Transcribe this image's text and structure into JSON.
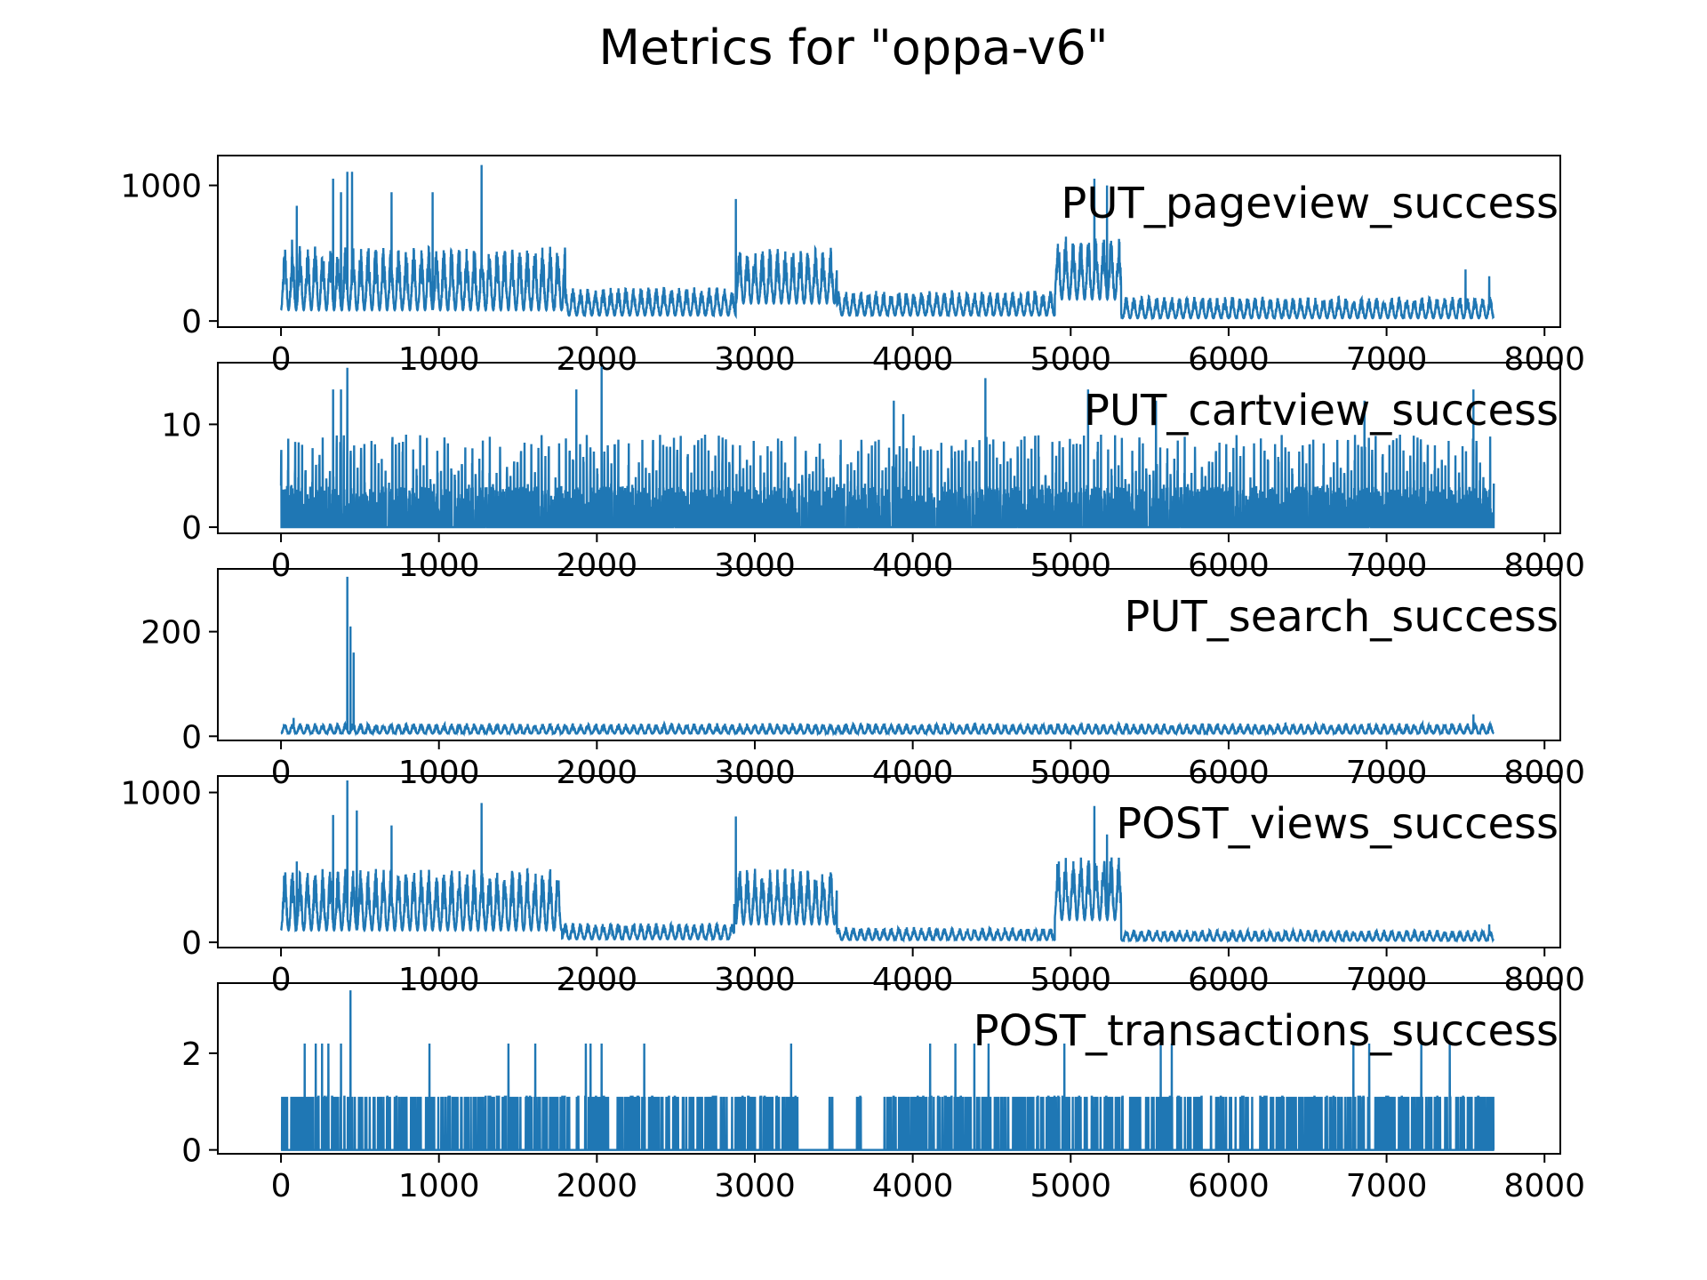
{
  "figure": {
    "title": "Metrics for \"oppa-v6\"",
    "line_color": "#1f77b4"
  },
  "chart_data": [
    {
      "type": "line",
      "label": "PUT_pageview_success",
      "xlim": [
        -400,
        8100
      ],
      "ylim": [
        -45,
        1220
      ],
      "xticks": [
        0,
        1000,
        2000,
        3000,
        4000,
        5000,
        6000,
        7000,
        8000
      ],
      "yticks": [
        0,
        1000
      ],
      "n_points": 7680,
      "segments": [
        {
          "x0": 0,
          "x1": 1800,
          "base": 80,
          "amp": 380,
          "period": 48
        },
        {
          "x0": 1800,
          "x1": 2880,
          "base": 40,
          "amp": 170,
          "period": 48
        },
        {
          "x0": 2880,
          "x1": 3520,
          "base": 130,
          "amp": 330,
          "period": 48
        },
        {
          "x0": 3520,
          "x1": 4900,
          "base": 40,
          "amp": 150,
          "period": 48
        },
        {
          "x0": 4900,
          "x1": 5320,
          "base": 160,
          "amp": 380,
          "period": 48
        },
        {
          "x0": 5320,
          "x1": 7680,
          "base": 20,
          "amp": 130,
          "period": 48
        }
      ],
      "peaks": [
        [
          20,
          420
        ],
        [
          70,
          600
        ],
        [
          100,
          850
        ],
        [
          330,
          1050
        ],
        [
          380,
          950
        ],
        [
          420,
          1100
        ],
        [
          450,
          1100
        ],
        [
          700,
          950
        ],
        [
          960,
          950
        ],
        [
          1270,
          1150
        ],
        [
          2880,
          900
        ],
        [
          5150,
          1050
        ],
        [
          5230,
          1000
        ],
        [
          7500,
          380
        ],
        [
          7650,
          330
        ]
      ]
    },
    {
      "type": "line",
      "label": "PUT_cartview_success",
      "xlim": [
        -400,
        8100
      ],
      "ylim": [
        -0.6,
        16
      ],
      "xticks": [
        0,
        1000,
        2000,
        3000,
        4000,
        5000,
        6000,
        7000,
        8000
      ],
      "yticks": [
        0,
        10
      ],
      "n_points": 7680,
      "spike_spacing": 22,
      "segments": [
        {
          "x0": 0,
          "x1": 7680,
          "base": 0,
          "amp": 6,
          "period": 48
        }
      ],
      "peaks": [
        [
          330,
          13.4
        ],
        [
          380,
          13.4
        ],
        [
          420,
          15.5
        ],
        [
          1870,
          13.4
        ],
        [
          2030,
          15.6
        ],
        [
          3880,
          12.3
        ],
        [
          3940,
          11
        ],
        [
          4460,
          14.5
        ],
        [
          5110,
          13.4
        ],
        [
          5540,
          12.3
        ],
        [
          6860,
          12.3
        ],
        [
          7550,
          13.4
        ]
      ]
    },
    {
      "type": "line",
      "label": "PUT_search_success",
      "xlim": [
        -400,
        8100
      ],
      "ylim": [
        -8,
        320
      ],
      "xticks": [
        0,
        1000,
        2000,
        3000,
        4000,
        5000,
        6000,
        7000,
        8000
      ],
      "yticks": [
        0,
        200
      ],
      "n_points": 7680,
      "segments": [
        {
          "x0": 0,
          "x1": 7680,
          "base": 5,
          "amp": 16,
          "period": 48
        }
      ],
      "peaks": [
        [
          420,
          305
        ],
        [
          440,
          210
        ],
        [
          460,
          160
        ],
        [
          80,
          35
        ],
        [
          7550,
          42
        ]
      ]
    },
    {
      "type": "line",
      "label": "POST_views_success",
      "xlim": [
        -400,
        8100
      ],
      "ylim": [
        -35,
        1110
      ],
      "xticks": [
        0,
        1000,
        2000,
        3000,
        4000,
        5000,
        6000,
        7000,
        8000
      ],
      "yticks": [
        0,
        1000
      ],
      "n_points": 7680,
      "segments": [
        {
          "x0": 0,
          "x1": 1780,
          "base": 80,
          "amp": 330,
          "period": 48
        },
        {
          "x0": 1780,
          "x1": 2870,
          "base": 20,
          "amp": 90,
          "period": 48
        },
        {
          "x0": 2870,
          "x1": 3520,
          "base": 120,
          "amp": 300,
          "period": 48
        },
        {
          "x0": 3520,
          "x1": 4900,
          "base": 15,
          "amp": 70,
          "period": 48
        },
        {
          "x0": 4900,
          "x1": 5320,
          "base": 150,
          "amp": 350,
          "period": 48
        },
        {
          "x0": 5320,
          "x1": 7680,
          "base": 10,
          "amp": 60,
          "period": 48
        }
      ],
      "peaks": [
        [
          100,
          540
        ],
        [
          330,
          850
        ],
        [
          420,
          1080
        ],
        [
          480,
          880
        ],
        [
          700,
          780
        ],
        [
          1270,
          930
        ],
        [
          2880,
          840
        ],
        [
          5150,
          910
        ],
        [
          5230,
          720
        ],
        [
          7650,
          120
        ]
      ]
    },
    {
      "type": "line",
      "label": "POST_transactions_success",
      "xlim": [
        -400,
        8100
      ],
      "ylim": [
        -0.08,
        3.45
      ],
      "xticks": [
        0,
        1000,
        2000,
        3000,
        4000,
        5000,
        6000,
        7000,
        8000
      ],
      "yticks": [
        0,
        2
      ],
      "n_points": 7680,
      "discrete_levels": [
        0,
        1.1,
        2.2,
        3.3
      ],
      "gaps": [
        [
          3280,
          3460
        ],
        [
          3500,
          3640
        ],
        [
          3680,
          3820
        ]
      ],
      "peaks": [
        [
          440,
          3.3
        ],
        [
          150,
          2.2
        ],
        [
          220,
          2.2
        ],
        [
          260,
          2.2
        ],
        [
          300,
          2.2
        ],
        [
          380,
          2.2
        ],
        [
          940,
          2.2
        ],
        [
          1440,
          2.2
        ],
        [
          1610,
          2.2
        ],
        [
          1930,
          2.2
        ],
        [
          1960,
          2.2
        ],
        [
          2030,
          2.2
        ],
        [
          2300,
          2.2
        ],
        [
          3230,
          2.2
        ],
        [
          4110,
          2.2
        ],
        [
          4270,
          2.2
        ],
        [
          4390,
          2.2
        ],
        [
          4480,
          2.2
        ],
        [
          4960,
          2.2
        ],
        [
          5570,
          2.2
        ],
        [
          5640,
          2.2
        ],
        [
          6790,
          2.2
        ],
        [
          6890,
          2.2
        ],
        [
          7220,
          2.2
        ],
        [
          7400,
          2.2
        ]
      ]
    }
  ]
}
